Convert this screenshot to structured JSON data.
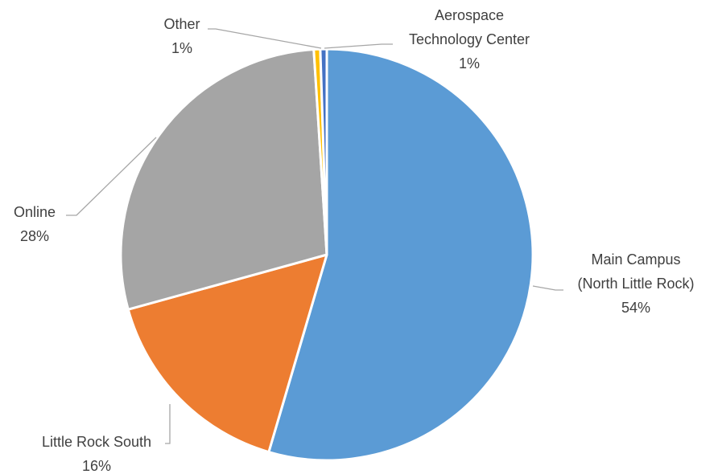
{
  "chart_data": {
    "type": "pie",
    "title": "",
    "slices": [
      {
        "name": "Main Campus (North Little Rock)",
        "label_lines": [
          "Main Campus",
          "(North Little Rock)"
        ],
        "value": 54,
        "pct_label": "54%",
        "color": "#5b9bd5"
      },
      {
        "name": "Little Rock South",
        "label_lines": [
          "Little Rock South"
        ],
        "value": 16,
        "pct_label": "16%",
        "color": "#ed7d31"
      },
      {
        "name": "Online",
        "label_lines": [
          "Online"
        ],
        "value": 28,
        "pct_label": "28%",
        "color": "#a5a5a5"
      },
      {
        "name": "Other",
        "label_lines": [
          "Other"
        ],
        "value": 0.5,
        "pct_label": "1%",
        "color": "#ffc000"
      },
      {
        "name": "Aerospace Technology Center",
        "label_lines": [
          "Aerospace",
          "Technology Center"
        ],
        "value": 0.5,
        "pct_label": "1%",
        "color": "#4472c4"
      }
    ],
    "start": "12 o'clock",
    "direction": "clockwise",
    "legend": "none",
    "data_labels": "outside with leader lines"
  }
}
